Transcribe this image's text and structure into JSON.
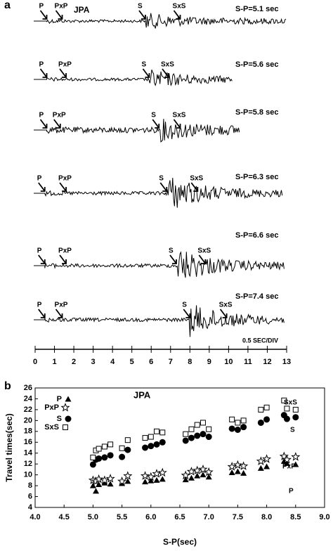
{
  "chart_data": [
    {
      "type": "seismogram",
      "panel": "a",
      "station": "JPA",
      "xlabel": "0.5 SEC/DIV",
      "xlim": [
        0,
        13
      ],
      "xticks": [
        0,
        1,
        2,
        3,
        4,
        5,
        6,
        7,
        8,
        9,
        10,
        11,
        12,
        13
      ],
      "traces": [
        {
          "label": "S-P=5.1 sec",
          "end": 13,
          "picks": [
            {
              "name": "P",
              "time": 0.6
            },
            {
              "name": "PxP",
              "time": 1.4
            },
            {
              "name": "S",
              "time": 5.7
            },
            {
              "name": "SxS",
              "time": 7.5
            }
          ]
        },
        {
          "label": "S-P=5.6 sec",
          "end": 10.2,
          "picks": [
            {
              "name": "P",
              "time": 0.6
            },
            {
              "name": "PxP",
              "time": 1.6
            },
            {
              "name": "S",
              "time": 5.9
            },
            {
              "name": "SxS",
              "time": 6.9
            }
          ]
        },
        {
          "label": "S-P=5.8 sec",
          "end": 10.6,
          "picks": [
            {
              "name": "P",
              "time": 0.6
            },
            {
              "name": "PxP",
              "time": 1.3
            },
            {
              "name": "S",
              "time": 6.4
            },
            {
              "name": "SxS",
              "time": 7.5
            }
          ]
        },
        {
          "label": "S-P=6.3 sec",
          "end": 12.8,
          "picks": [
            {
              "name": "P",
              "time": 0.5
            },
            {
              "name": "PxP",
              "time": 1.6
            },
            {
              "name": "S",
              "time": 6.8
            },
            {
              "name": "SxS",
              "time": 8.4
            }
          ]
        },
        {
          "label": "S-P=6.6 sec",
          "end": 12.9,
          "picks": [
            {
              "name": "P",
              "time": 0.5
            },
            {
              "name": "PxP",
              "time": 1.6
            },
            {
              "name": "S",
              "time": 7.3
            },
            {
              "name": "SxS",
              "time": 8.8
            }
          ]
        },
        {
          "label": "S-P=7.4 sec",
          "end": 12.9,
          "picks": [
            {
              "name": "P",
              "time": 0.5
            },
            {
              "name": "PxP",
              "time": 1.4
            },
            {
              "name": "S",
              "time": 8.0
            },
            {
              "name": "SxS",
              "time": 9.9
            }
          ]
        }
      ]
    },
    {
      "type": "scatter",
      "panel": "b",
      "title": "JPA",
      "xlabel": "S-P(sec)",
      "ylabel": "Travel times(sec)",
      "xlim": [
        4,
        9
      ],
      "ylim": [
        4,
        26
      ],
      "xticks": [
        {
          "value": 4,
          "label": "4.0"
        },
        4.5,
        {
          "value": 5,
          "label": "5.0"
        },
        5.5,
        {
          "value": 6,
          "label": "6.0"
        },
        6.5,
        {
          "value": 7,
          "label": "7.0"
        },
        7.5,
        {
          "value": 8,
          "label": "8.0"
        },
        8.5,
        {
          "value": 9,
          "label": "9.0"
        }
      ],
      "yticks": [
        4,
        6,
        8,
        10,
        12,
        14,
        16,
        18,
        20,
        22,
        24,
        26
      ],
      "x": [
        5.0,
        5.05,
        5.1,
        5.2,
        5.3,
        5.5,
        5.6,
        5.9,
        6.0,
        6.1,
        6.2,
        6.6,
        6.7,
        6.8,
        6.9,
        7.0,
        7.4,
        7.5,
        7.6,
        7.9,
        8.0,
        8.3,
        8.35,
        8.5
      ],
      "series": [
        {
          "name": "P",
          "marker": "triangle",
          "color": "#000000",
          "values": [
            8.0,
            7.0,
            8.2,
            8.5,
            8.3,
            8.4,
            8.8,
            8.7,
            8.9,
            9.0,
            9.2,
            9.1,
            9.4,
            9.8,
            10.0,
            9.6,
            10.4,
            10.6,
            10.3,
            11.2,
            11.5,
            12.5,
            12.1,
            11.9
          ]
        },
        {
          "name": "PxP",
          "marker": "star",
          "color": "#000000",
          "values": [
            9.0,
            8.8,
            9.2,
            9.0,
            9.3,
            8.8,
            9.8,
            9.8,
            9.6,
            10.2,
            10.4,
            9.9,
            10.6,
            10.8,
            11.0,
            10.5,
            11.5,
            11.8,
            11.6,
            12.5,
            12.9,
            13.4,
            12.8,
            13.3
          ]
        },
        {
          "name": "S",
          "marker": "circle",
          "color": "#000000",
          "values": [
            11.9,
            12.8,
            13.0,
            13.2,
            13.6,
            13.3,
            14.6,
            15.0,
            15.3,
            15.6,
            16.0,
            16.3,
            16.8,
            17.2,
            17.5,
            17.0,
            18.5,
            18.3,
            18.8,
            19.6,
            20.2,
            21.0,
            20.3,
            20.6
          ]
        },
        {
          "name": "SxS",
          "marker": "square",
          "color": "#000000",
          "values": [
            13.2,
            14.5,
            14.8,
            15.2,
            15.6,
            14.9,
            16.4,
            16.8,
            17.0,
            18.0,
            17.8,
            17.5,
            18.4,
            19.2,
            19.6,
            18.4,
            20.2,
            19.6,
            20.0,
            22.0,
            22.4,
            23.7,
            22.2,
            22.0
          ]
        }
      ],
      "annotations": [
        "SxS",
        "S",
        "PxP",
        "P"
      ]
    }
  ]
}
